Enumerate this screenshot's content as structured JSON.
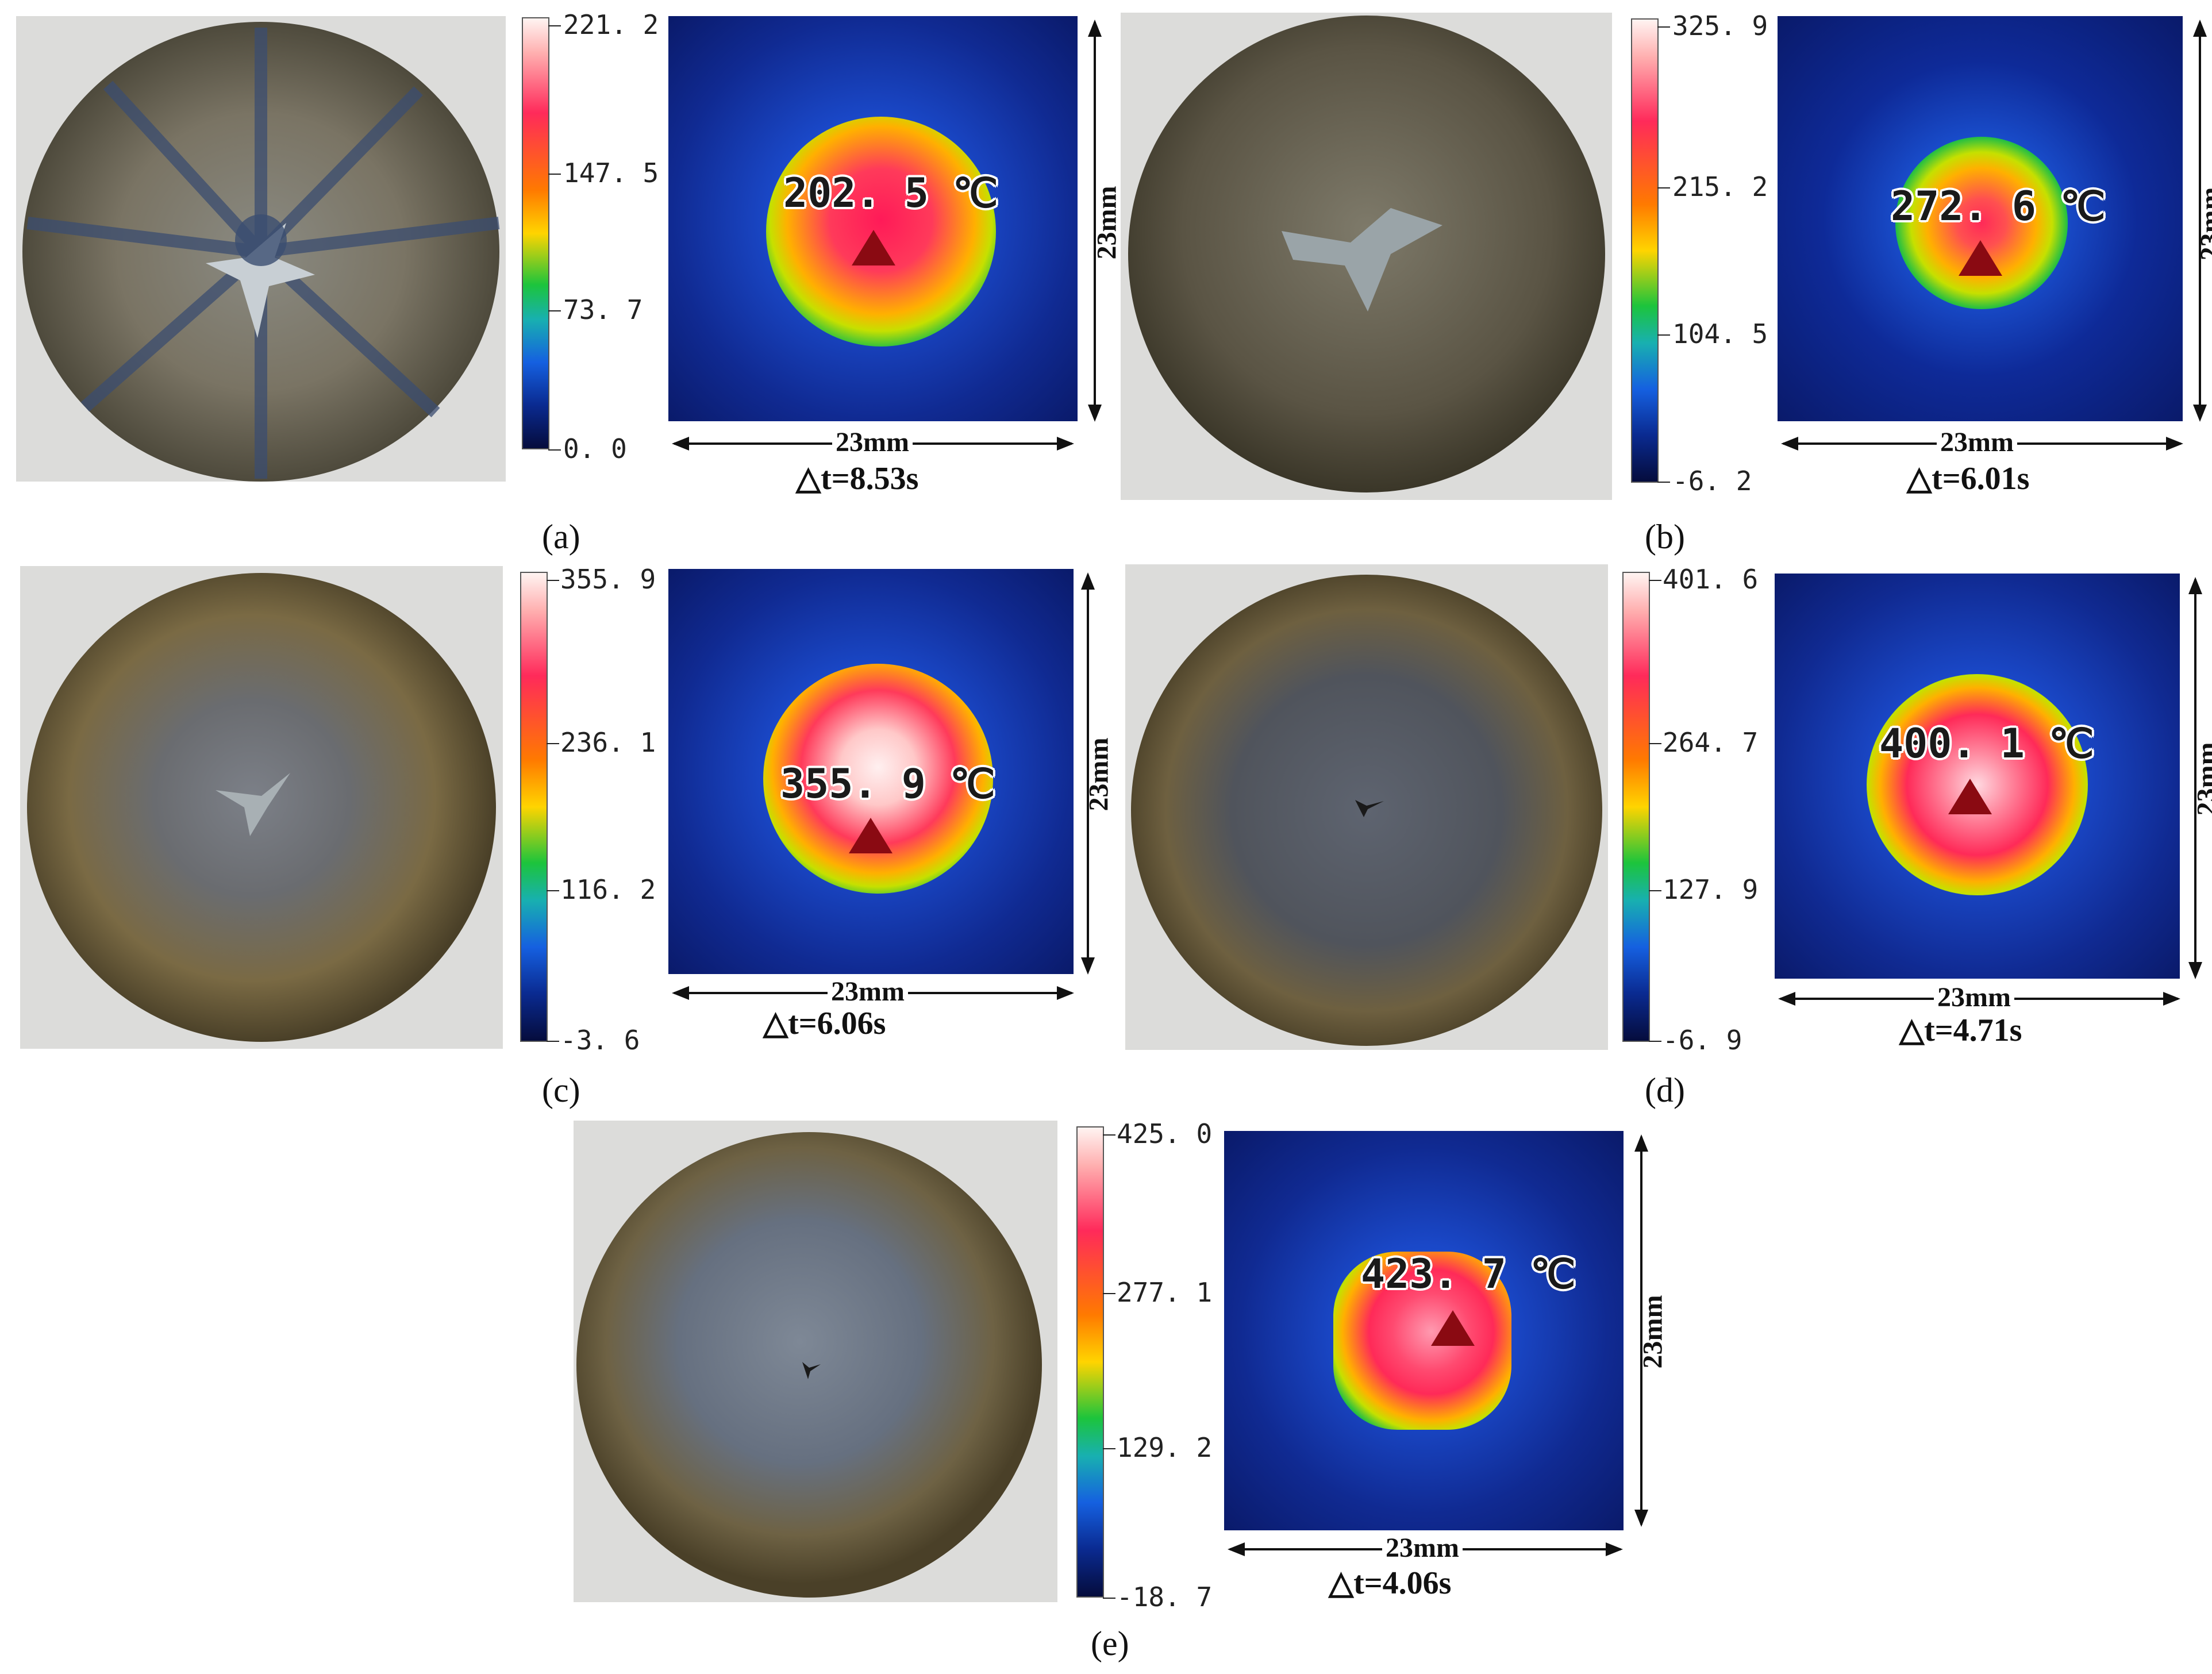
{
  "figure": {
    "dimension_label": "23mm",
    "panels": [
      {
        "id": "a",
        "caption": "(a)",
        "temperature": "202. 5 ℃",
        "delta_t": "△t=8.53s",
        "scale": [
          "221. 2",
          "147. 5",
          "73. 7",
          "0. 0"
        ]
      },
      {
        "id": "b",
        "caption": "(b)",
        "temperature": "272. 6 ℃",
        "delta_t": "△t=6.01s",
        "scale": [
          "325. 9",
          "215. 2",
          "104. 5",
          "-6. 2"
        ]
      },
      {
        "id": "c",
        "caption": "(c)",
        "temperature": "355. 9 ℃",
        "delta_t": "△t=6.06s",
        "scale": [
          "355. 9",
          "236. 1",
          "116. 2",
          "-3. 6"
        ]
      },
      {
        "id": "d",
        "caption": "(d)",
        "temperature": "400. 1 ℃",
        "delta_t": "△t=4.71s",
        "scale": [
          "401. 6",
          "264. 7",
          "127. 9",
          "-6. 9"
        ]
      },
      {
        "id": "e",
        "caption": "(e)",
        "temperature": "423. 7 ℃",
        "delta_t": "△t=4.06s",
        "scale": [
          "425. 0",
          "277. 1",
          "129. 2",
          "-18. 7"
        ]
      }
    ]
  }
}
